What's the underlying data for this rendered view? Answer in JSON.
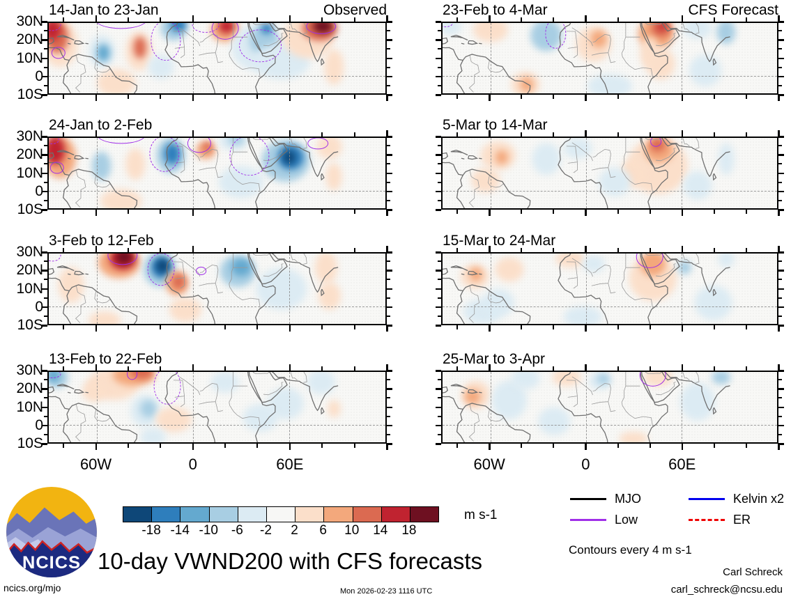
{
  "chart_data": {
    "type": "heatmap",
    "description": "Eight filled-contour lat-lon map panels of 10-day mean 200-hPa meridional wind anomalies (VWND200); left column observed, right column CFS forecast. Purple contours mark filtered wave anomalies.",
    "columns": [
      "Observed",
      "CFS Forecast"
    ],
    "axes": {
      "lat_labels": [
        "30N",
        "20N",
        "10N",
        "0",
        "10S"
      ],
      "lat_values": [
        30,
        20,
        10,
        0,
        -10
      ],
      "lon_labels": [
        "60W",
        "0",
        "60E"
      ],
      "lon_values": [
        -60,
        0,
        60
      ],
      "lon_range": [
        -90,
        120
      ],
      "lat_range": [
        -10,
        30
      ]
    },
    "colorbar": {
      "levels": [
        "-18",
        "-14",
        "-10",
        "-6",
        "-2",
        "2",
        "6",
        "10",
        "14",
        "18"
      ],
      "colors": [
        "#0e4778",
        "#2e7ebc",
        "#64a9cf",
        "#a8cee3",
        "#dcebf3",
        "#f7f7f5",
        "#fbdfca",
        "#f3a87c",
        "#db6a51",
        "#c02330",
        "#6e1021"
      ],
      "units": "m s-1"
    },
    "legend": [
      {
        "label": "MJO",
        "color": "#000000",
        "dashed": false
      },
      {
        "label": "Low",
        "color": "#a02fe8",
        "dashed": false
      },
      {
        "label": "Kelvin x2",
        "color": "#0000ee",
        "dashed": false
      },
      {
        "label": "ER",
        "color": "#ee0000",
        "dashed": true
      }
    ],
    "contour_note": "Contours every 4 m s-1",
    "panels": [
      {
        "title": "14-Jan to 23-Jan",
        "corner": "Observed",
        "col": 0,
        "row": 0,
        "blobs": [
          [
            -83,
            18,
            11,
            13,
            6
          ],
          [
            -85,
            22,
            7,
            9,
            8
          ],
          [
            -88,
            26,
            5,
            6,
            9
          ],
          [
            -57,
            14,
            8,
            9,
            4
          ],
          [
            -56,
            13,
            4,
            5,
            2
          ],
          [
            -34,
            14,
            8,
            11,
            6
          ],
          [
            -33,
            16,
            4,
            6,
            8
          ],
          [
            -12,
            27,
            8,
            7,
            3
          ],
          [
            -9,
            29,
            5,
            4,
            1
          ],
          [
            -20,
            5,
            8,
            7,
            4
          ],
          [
            20,
            26,
            9,
            7,
            7
          ],
          [
            21,
            28,
            5,
            4,
            9
          ],
          [
            40,
            16,
            16,
            13,
            4
          ],
          [
            44,
            20,
            9,
            8,
            3
          ],
          [
            46,
            27,
            4,
            3,
            1
          ],
          [
            55,
            8,
            18,
            10,
            4
          ],
          [
            72,
            22,
            16,
            12,
            6
          ],
          [
            79,
            27,
            11,
            7,
            8
          ],
          [
            81,
            28,
            6,
            4,
            10
          ],
          [
            -48,
            -4,
            12,
            8,
            6
          ],
          [
            88,
            5,
            6,
            10,
            6
          ]
        ],
        "contours": [
          [
            -45,
            32,
            16,
            5,
            0
          ],
          [
            -84,
            13,
            4,
            3,
            0
          ],
          [
            20,
            27,
            8,
            6,
            0
          ],
          [
            80,
            28,
            9,
            4,
            0
          ],
          [
            -88,
            29,
            5,
            3,
            1
          ],
          [
            -17,
            20,
            9,
            11,
            1
          ],
          [
            42,
            17,
            13,
            9,
            1
          ],
          [
            8,
            29,
            8,
            4,
            1
          ]
        ]
      },
      {
        "title": "24-Jan to 2-Feb",
        "corner": null,
        "col": 0,
        "row": 1,
        "blobs": [
          [
            -83,
            19,
            10,
            12,
            7
          ],
          [
            -86,
            23,
            6,
            8,
            9
          ],
          [
            -57,
            14,
            6,
            8,
            3
          ],
          [
            -36,
            15,
            6,
            9,
            6
          ],
          [
            -14,
            20,
            9,
            10,
            3
          ],
          [
            -13,
            21,
            5,
            6,
            1
          ],
          [
            8,
            23,
            6,
            5,
            7
          ],
          [
            9,
            25,
            3,
            3,
            8
          ],
          [
            25,
            28,
            9,
            5,
            4
          ],
          [
            27,
            29,
            5,
            3,
            3
          ],
          [
            58,
            17,
            15,
            12,
            3
          ],
          [
            61,
            19,
            8,
            7,
            1
          ],
          [
            60,
            19,
            4,
            4,
            0
          ],
          [
            85,
            25,
            8,
            7,
            6
          ],
          [
            -45,
            -6,
            13,
            7,
            6
          ],
          [
            30,
            5,
            14,
            9,
            4
          ],
          [
            88,
            8,
            5,
            8,
            6
          ]
        ],
        "contours": [
          [
            -45,
            32,
            15,
            5,
            0
          ],
          [
            -85,
            13,
            4,
            3,
            0
          ],
          [
            4,
            27,
            7,
            5,
            0
          ],
          [
            78,
            27,
            6,
            3,
            0
          ],
          [
            -18,
            21,
            9,
            10,
            1
          ],
          [
            35,
            20,
            12,
            11,
            1
          ],
          [
            -88,
            29,
            4,
            2,
            1
          ]
        ]
      },
      {
        "title": "3-Feb to 12-Feb",
        "corner": null,
        "col": 0,
        "row": 2,
        "blobs": [
          [
            -76,
            12,
            8,
            10,
            6
          ],
          [
            -46,
            25,
            13,
            9,
            7
          ],
          [
            -44,
            27,
            8,
            6,
            9
          ],
          [
            -43,
            28,
            5,
            4,
            10
          ],
          [
            -21,
            21,
            10,
            10,
            3
          ],
          [
            -20,
            22,
            6,
            6,
            1
          ],
          [
            -19,
            23,
            4,
            4,
            0
          ],
          [
            -10,
            13,
            7,
            7,
            7
          ],
          [
            -9,
            14,
            4,
            4,
            8
          ],
          [
            28,
            20,
            11,
            9,
            3
          ],
          [
            30,
            22,
            6,
            5,
            2
          ],
          [
            55,
            10,
            16,
            12,
            4
          ],
          [
            83,
            22,
            7,
            9,
            6
          ],
          [
            85,
            6,
            7,
            8,
            6
          ],
          [
            -55,
            -8,
            10,
            5,
            6
          ],
          [
            -5,
            -2,
            10,
            7,
            6
          ]
        ],
        "contours": [
          [
            -44,
            29,
            9,
            5,
            0
          ],
          [
            5,
            20,
            3,
            2,
            0
          ],
          [
            -20,
            21,
            8,
            9,
            1
          ],
          [
            -88,
            29,
            5,
            3,
            1
          ]
        ]
      },
      {
        "title": "13-Feb to 22-Feb",
        "corner": null,
        "col": 0,
        "row": 3,
        "blobs": [
          [
            -85,
            27,
            7,
            6,
            3
          ],
          [
            -87,
            28,
            4,
            4,
            2
          ],
          [
            -50,
            23,
            16,
            9,
            6
          ],
          [
            -37,
            28,
            13,
            6,
            7
          ],
          [
            -32,
            30,
            7,
            4,
            8
          ],
          [
            -62,
            19,
            7,
            6,
            6
          ],
          [
            -30,
            8,
            9,
            9,
            4
          ],
          [
            -28,
            9,
            5,
            5,
            3
          ],
          [
            -12,
            3,
            11,
            7,
            6
          ],
          [
            -25,
            -7,
            8,
            5,
            4
          ],
          [
            20,
            24,
            9,
            6,
            4
          ],
          [
            58,
            12,
            11,
            9,
            4
          ],
          [
            80,
            24,
            9,
            7,
            4
          ],
          [
            42,
            4,
            11,
            8,
            4
          ],
          [
            88,
            9,
            4,
            5,
            6
          ]
        ],
        "contours": [
          [
            -38,
            29,
            3,
            3,
            0
          ],
          [
            -16,
            22,
            8,
            10,
            1
          ],
          [
            -88,
            29,
            5,
            2,
            1
          ]
        ]
      },
      {
        "title": "23-Feb to 4-Mar",
        "corner": "CFS Forecast",
        "col": 1,
        "row": 0,
        "blobs": [
          [
            -60,
            26,
            11,
            7,
            6
          ],
          [
            -85,
            28,
            7,
            5,
            4
          ],
          [
            -25,
            23,
            10,
            9,
            3
          ],
          [
            5,
            18,
            11,
            10,
            6
          ],
          [
            8,
            21,
            5,
            5,
            7
          ],
          [
            44,
            24,
            11,
            9,
            7
          ],
          [
            47,
            27,
            6,
            5,
            8
          ],
          [
            48,
            28,
            3,
            2,
            9
          ],
          [
            40,
            13,
            6,
            9,
            6
          ],
          [
            47,
            7,
            9,
            9,
            6
          ],
          [
            70,
            27,
            9,
            6,
            4
          ],
          [
            88,
            25,
            6,
            7,
            3
          ],
          [
            -38,
            -5,
            9,
            7,
            6
          ],
          [
            -37,
            -5,
            4,
            4,
            7
          ],
          [
            15,
            -6,
            14,
            7,
            4
          ],
          [
            75,
            3,
            10,
            9,
            4
          ]
        ],
        "contours": [
          [
            -19,
            24,
            6,
            8,
            1
          ],
          [
            -88,
            30,
            4,
            2,
            1
          ]
        ]
      },
      {
        "title": "5-Mar to 14-Mar",
        "corner": null,
        "col": 1,
        "row": 1,
        "blobs": [
          [
            -55,
            20,
            11,
            8,
            6
          ],
          [
            -53,
            19,
            4,
            4,
            7
          ],
          [
            -25,
            18,
            9,
            9,
            4
          ],
          [
            -63,
            6,
            9,
            7,
            6
          ],
          [
            -5,
            24,
            9,
            6,
            4
          ],
          [
            45,
            14,
            19,
            16,
            6
          ],
          [
            46,
            23,
            9,
            7,
            7
          ],
          [
            45,
            26,
            5,
            4,
            8
          ],
          [
            30,
            10,
            8,
            8,
            6
          ],
          [
            88,
            18,
            5,
            9,
            4
          ],
          [
            70,
            3,
            9,
            8,
            4
          ],
          [
            18,
            5,
            10,
            8,
            4
          ]
        ],
        "contours": [
          [
            44,
            28,
            3,
            2.5,
            0
          ]
        ]
      },
      {
        "title": "15-Mar to 24-Mar",
        "corner": null,
        "col": 1,
        "row": 2,
        "blobs": [
          [
            -70,
            17,
            9,
            7,
            6
          ],
          [
            -69,
            18,
            4,
            4,
            7
          ],
          [
            -48,
            21,
            9,
            7,
            6
          ],
          [
            -65,
            -3,
            12,
            7,
            4
          ],
          [
            -55,
            2,
            10,
            8,
            4
          ],
          [
            -10,
            27,
            9,
            5,
            6
          ],
          [
            5,
            24,
            7,
            5,
            4
          ],
          [
            42,
            16,
            15,
            13,
            6
          ],
          [
            42,
            24,
            8,
            7,
            7
          ],
          [
            43,
            26,
            4,
            3,
            7
          ],
          [
            62,
            22,
            4,
            4,
            3
          ],
          [
            80,
            2,
            12,
            10,
            4
          ],
          [
            -2,
            -6,
            12,
            6,
            4
          ],
          [
            88,
            27,
            5,
            5,
            4
          ]
        ],
        "contours": [
          [
            40,
            28,
            8,
            6,
            0
          ]
        ]
      },
      {
        "title": "25-Mar to 3-Apr",
        "corner": null,
        "col": 1,
        "row": 3,
        "blobs": [
          [
            -69,
            17,
            9,
            8,
            6
          ],
          [
            -71,
            16,
            5,
            4,
            7
          ],
          [
            -48,
            14,
            11,
            11,
            4
          ],
          [
            -38,
            26,
            9,
            6,
            4
          ],
          [
            -12,
            27,
            9,
            5,
            6
          ],
          [
            9,
            25,
            7,
            5,
            4
          ],
          [
            11,
            26,
            4,
            3,
            3
          ],
          [
            45,
            27,
            9,
            5,
            6
          ],
          [
            47,
            28,
            5,
            3,
            6
          ],
          [
            70,
            13,
            11,
            11,
            4
          ],
          [
            85,
            27,
            6,
            4,
            3
          ],
          [
            30,
            -8,
            9,
            4,
            6
          ],
          [
            -20,
            2,
            10,
            8,
            4
          ]
        ],
        "contours": [
          [
            42,
            28,
            8,
            6,
            0
          ]
        ]
      }
    ]
  },
  "footer": {
    "title": "10-day VWND200 with CFS forecasts",
    "credit_name": "Carl Schreck",
    "credit_email": "carl_schreck@ncsu.edu",
    "url": "ncics.org/mjo",
    "timestamp": "Mon 2026-02-23 1116 UTC",
    "logo_text": "NCICS"
  }
}
